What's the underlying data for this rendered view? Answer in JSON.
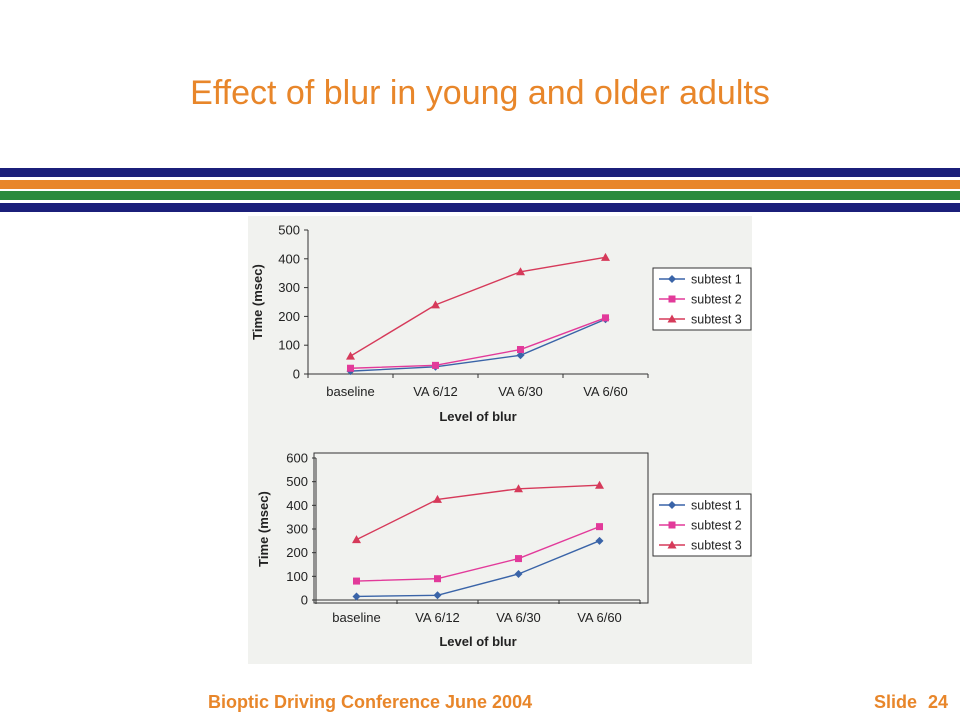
{
  "slide": {
    "title": "Effect of blur in young and older adults",
    "footer_text": "Bioptic Driving Conference June 2004",
    "slide_label": "Slide",
    "slide_number": "24"
  },
  "colors": {
    "title": "#e8862a",
    "stripes": [
      "#1b1f7a",
      "#e8862a",
      "#2b8a3e",
      "#1b1f7a"
    ],
    "series": [
      "#3a64a8",
      "#e23a9a",
      "#d63a5a"
    ]
  },
  "chart_data": [
    {
      "type": "line",
      "categories": [
        "baseline",
        "VA 6/12",
        "VA 6/30",
        "VA 6/60"
      ],
      "xlabel": "Level of blur",
      "ylabel": "Time (msec)",
      "ylim": [
        0,
        500
      ],
      "yticks": [
        0,
        100,
        200,
        300,
        400,
        500
      ],
      "legend_position": "right",
      "series": [
        {
          "name": "subtest 1",
          "marker": "diamond",
          "values": [
            10,
            25,
            65,
            190
          ]
        },
        {
          "name": "subtest 2",
          "marker": "square",
          "values": [
            20,
            30,
            85,
            195
          ]
        },
        {
          "name": "subtest 3",
          "marker": "triangle",
          "values": [
            62,
            240,
            355,
            405
          ]
        }
      ]
    },
    {
      "type": "line",
      "categories": [
        "baseline",
        "VA 6/12",
        "VA 6/30",
        "VA 6/60"
      ],
      "xlabel": "Level of blur",
      "ylabel": "Time (msec)",
      "ylim": [
        0,
        600
      ],
      "yticks": [
        0,
        100,
        200,
        300,
        400,
        500,
        600
      ],
      "legend_position": "right",
      "series": [
        {
          "name": "subtest 1",
          "marker": "diamond",
          "values": [
            15,
            20,
            110,
            250
          ]
        },
        {
          "name": "subtest 2",
          "marker": "square",
          "values": [
            80,
            90,
            175,
            310
          ]
        },
        {
          "name": "subtest 3",
          "marker": "triangle",
          "values": [
            255,
            425,
            470,
            485
          ]
        }
      ]
    }
  ]
}
